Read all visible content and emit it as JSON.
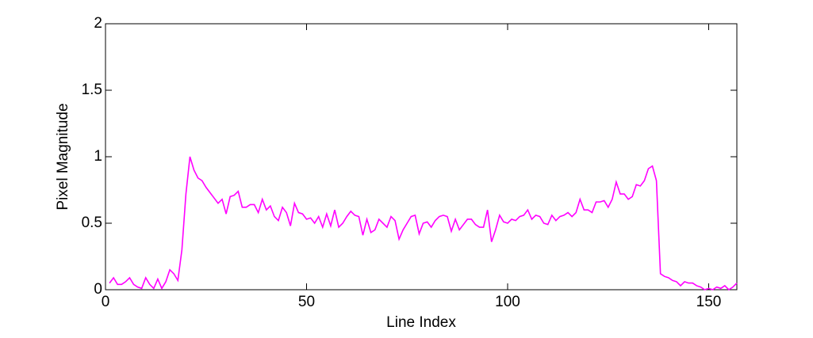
{
  "chart_data": {
    "type": "line",
    "xlabel": "Line Index",
    "ylabel": "Pixel Magnitude",
    "xlim": [
      0,
      157
    ],
    "ylim": [
      0,
      2
    ],
    "xticks": [
      0,
      50,
      100,
      150
    ],
    "yticks": [
      0,
      0.5,
      1,
      1.5,
      2
    ],
    "grid": false,
    "x": [
      1,
      2,
      3,
      4,
      5,
      6,
      7,
      8,
      9,
      10,
      11,
      12,
      13,
      14,
      15,
      16,
      17,
      18,
      19,
      20,
      21,
      22,
      23,
      24,
      25,
      26,
      27,
      28,
      29,
      30,
      31,
      32,
      33,
      34,
      35,
      36,
      37,
      38,
      39,
      40,
      41,
      42,
      43,
      44,
      45,
      46,
      47,
      48,
      49,
      50,
      51,
      52,
      53,
      54,
      55,
      56,
      57,
      58,
      59,
      60,
      61,
      62,
      63,
      64,
      65,
      66,
      67,
      68,
      69,
      70,
      71,
      72,
      73,
      74,
      75,
      76,
      77,
      78,
      79,
      80,
      81,
      82,
      83,
      84,
      85,
      86,
      87,
      88,
      89,
      90,
      91,
      92,
      93,
      94,
      95,
      96,
      97,
      98,
      99,
      100,
      101,
      102,
      103,
      104,
      105,
      106,
      107,
      108,
      109,
      110,
      111,
      112,
      113,
      114,
      115,
      116,
      117,
      118,
      119,
      120,
      121,
      122,
      123,
      124,
      125,
      126,
      127,
      128,
      129,
      130,
      131,
      132,
      133,
      134,
      135,
      136,
      137,
      138,
      139,
      140,
      141,
      142,
      143,
      144,
      145,
      146,
      147,
      148,
      149,
      150,
      151,
      152,
      153,
      154,
      155,
      156,
      157
    ],
    "series": [
      {
        "color": "#ff00ff",
        "values": [
          0.05,
          0.09,
          0.04,
          0.04,
          0.06,
          0.09,
          0.04,
          0.02,
          0.01,
          0.09,
          0.04,
          0.01,
          0.08,
          0.01,
          0.06,
          0.15,
          0.12,
          0.07,
          0.3,
          0.72,
          1.0,
          0.9,
          0.84,
          0.82,
          0.77,
          0.73,
          0.69,
          0.65,
          0.68,
          0.57,
          0.7,
          0.71,
          0.74,
          0.62,
          0.62,
          0.64,
          0.64,
          0.58,
          0.68,
          0.6,
          0.63,
          0.55,
          0.52,
          0.62,
          0.58,
          0.48,
          0.65,
          0.58,
          0.57,
          0.53,
          0.54,
          0.5,
          0.55,
          0.47,
          0.57,
          0.48,
          0.6,
          0.47,
          0.5,
          0.55,
          0.59,
          0.56,
          0.55,
          0.41,
          0.53,
          0.43,
          0.45,
          0.53,
          0.5,
          0.47,
          0.55,
          0.52,
          0.38,
          0.45,
          0.5,
          0.55,
          0.56,
          0.42,
          0.5,
          0.51,
          0.47,
          0.52,
          0.55,
          0.56,
          0.55,
          0.44,
          0.53,
          0.45,
          0.49,
          0.53,
          0.53,
          0.49,
          0.47,
          0.47,
          0.6,
          0.36,
          0.45,
          0.56,
          0.51,
          0.5,
          0.53,
          0.52,
          0.55,
          0.56,
          0.6,
          0.53,
          0.56,
          0.55,
          0.5,
          0.49,
          0.56,
          0.52,
          0.55,
          0.56,
          0.58,
          0.55,
          0.58,
          0.68,
          0.6,
          0.6,
          0.58,
          0.66,
          0.66,
          0.67,
          0.62,
          0.68,
          0.81,
          0.72,
          0.72,
          0.68,
          0.7,
          0.79,
          0.78,
          0.82,
          0.91,
          0.93,
          0.82,
          0.12,
          0.1,
          0.09,
          0.07,
          0.06,
          0.03,
          0.06,
          0.05,
          0.05,
          0.03,
          0.02,
          0.0,
          0.01,
          0.0,
          0.02,
          0.01,
          0.03,
          0.0,
          0.02,
          0.05
        ]
      }
    ]
  }
}
